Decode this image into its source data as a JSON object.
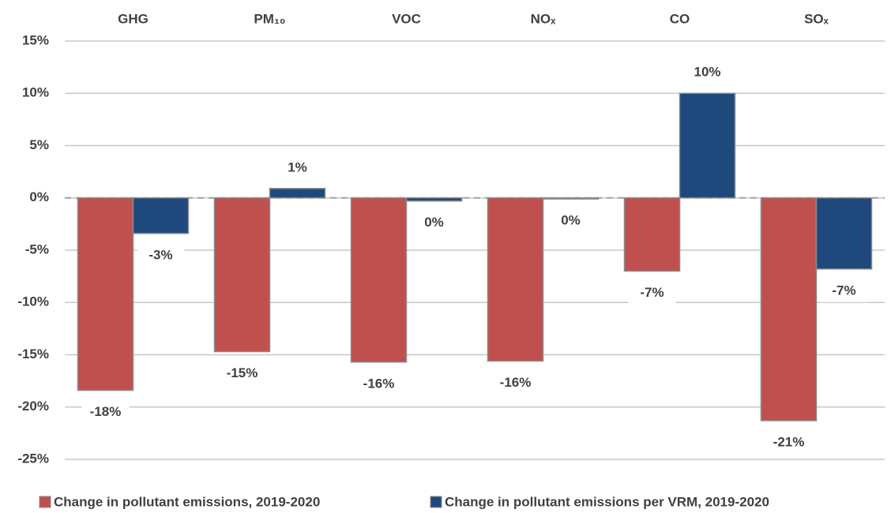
{
  "chart_data": {
    "type": "bar",
    "categories": [
      "GHG",
      "PM₁₀",
      "VOC",
      "NOₓ",
      "CO",
      "SOₓ"
    ],
    "series": [
      {
        "name": "Change in pollutant emissions, 2019-2020",
        "color": "#c0504d",
        "values": [
          -18.4,
          -14.7,
          -15.7,
          -15.6,
          -7.0,
          -21.3
        ],
        "value_labels": [
          "-18%",
          "-15%",
          "-16%",
          "-16%",
          "-7%",
          "-21%"
        ]
      },
      {
        "name": "Change in pollutant emissions per VRM, 2019-2020",
        "color": "#1f497d",
        "values": [
          -3.4,
          0.9,
          -0.3,
          -0.1,
          10.0,
          -6.8
        ],
        "value_labels": [
          "-3%",
          "1%",
          "0%",
          "0%",
          "10%",
          "-7%"
        ]
      }
    ],
    "ylim": [
      -25,
      15
    ],
    "yticks": [
      {
        "value": -25,
        "label": "-25%"
      },
      {
        "value": -20,
        "label": "-20%"
      },
      {
        "value": -15,
        "label": "-15%"
      },
      {
        "value": -10,
        "label": "-10%"
      },
      {
        "value": -5,
        "label": "-5%"
      },
      {
        "value": 0,
        "label": "0%"
      },
      {
        "value": 5,
        "label": "5%"
      },
      {
        "value": 10,
        "label": "10%"
      },
      {
        "value": 15,
        "label": "15%"
      }
    ],
    "grid": true,
    "legend": "bottom"
  }
}
